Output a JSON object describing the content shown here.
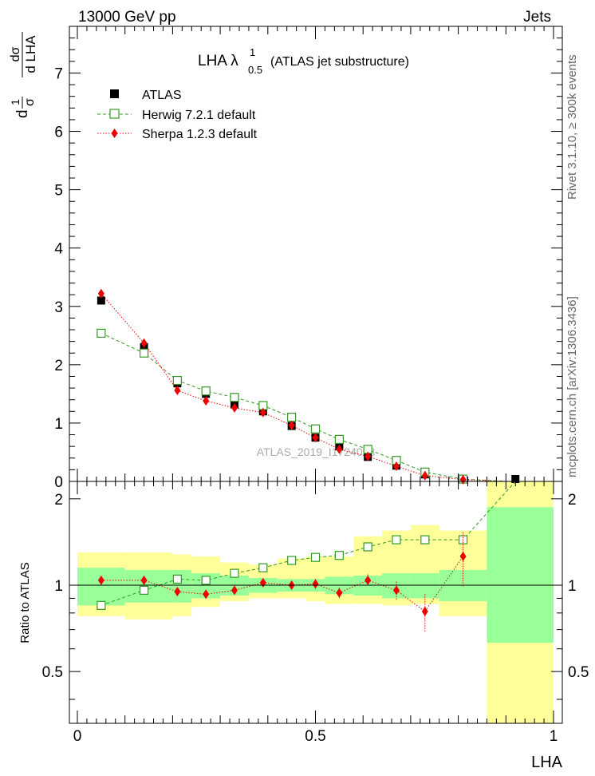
{
  "header": {
    "left": "13000 GeV pp",
    "right": "Jets"
  },
  "side_text": {
    "rivet": "Rivet 3.1.10, ≥ 300k events",
    "mcplots": "mcplots.cern.ch [arXiv:1306.3436]"
  },
  "watermark": "ATLAS_2019_I1724098",
  "colors": {
    "herwig": "#339922",
    "sherpa": "#ee0000",
    "band_inner": "#99ff99",
    "band_outer": "#ffff99"
  },
  "chart_data": {
    "type": "scatter",
    "title_main": "LHA λ",
    "title_sup": "1",
    "title_sub": "0.5",
    "title_rest": "(ATLAS jet substructure)",
    "top_ylabel": {
      "frac_num": "1",
      "frac_den": "σ",
      "d": "d",
      "num": "dσ",
      "den": "d LHA"
    },
    "ratio_ylabel": "Ratio to ATLAS",
    "xlabel": "LHA",
    "xlim": [
      0,
      1
    ],
    "top_ylim": [
      0,
      7.8
    ],
    "ratio_ylim": [
      0.33,
      2.3
    ],
    "top_yticks": [
      "0",
      "1",
      "2",
      "3",
      "4",
      "5",
      "6",
      "7"
    ],
    "ratio_yticks": [
      "0.5",
      "1",
      "2"
    ],
    "xticks": [
      "0",
      "0.5",
      "1"
    ],
    "bins": [
      [
        0.0,
        0.1
      ],
      [
        0.1,
        0.2
      ],
      [
        0.2,
        0.24
      ],
      [
        0.24,
        0.3
      ],
      [
        0.3,
        0.36
      ],
      [
        0.36,
        0.42
      ],
      [
        0.42,
        0.48
      ],
      [
        0.48,
        0.52
      ],
      [
        0.52,
        0.58
      ],
      [
        0.58,
        0.64
      ],
      [
        0.64,
        0.7
      ],
      [
        0.7,
        0.76
      ],
      [
        0.76,
        0.86
      ],
      [
        0.86,
        1.0
      ]
    ],
    "series": [
      {
        "name": "ATLAS",
        "x": [
          0.05,
          0.14,
          0.21,
          0.27,
          0.33,
          0.39,
          0.45,
          0.5,
          0.55,
          0.61,
          0.67,
          0.73,
          0.81,
          0.92
        ],
        "values": [
          3.1,
          2.3,
          1.68,
          1.5,
          1.32,
          1.2,
          0.95,
          0.75,
          0.6,
          0.42,
          0.27,
          0.12,
          0.03,
          0.0
        ]
      },
      {
        "name": "Herwig 7.2.1 default",
        "x": [
          0.05,
          0.14,
          0.21,
          0.27,
          0.33,
          0.39,
          0.45,
          0.5,
          0.55,
          0.61,
          0.67,
          0.73,
          0.81
        ],
        "values": [
          2.54,
          2.2,
          1.73,
          1.55,
          1.44,
          1.3,
          1.1,
          0.9,
          0.72,
          0.55,
          0.36,
          0.16,
          0.04
        ],
        "ratio": [
          0.85,
          0.96,
          1.05,
          1.04,
          1.1,
          1.15,
          1.22,
          1.25,
          1.27,
          1.36,
          1.44,
          1.44,
          1.44,
          2.3
        ]
      },
      {
        "name": "Sherpa 1.2.3 default",
        "x": [
          0.05,
          0.14,
          0.21,
          0.27,
          0.33,
          0.39,
          0.45,
          0.5,
          0.55,
          0.61,
          0.67,
          0.73,
          0.81
        ],
        "values": [
          3.22,
          2.37,
          1.56,
          1.38,
          1.26,
          1.18,
          0.96,
          0.75,
          0.55,
          0.43,
          0.26,
          0.1,
          0.03
        ],
        "ratio": [
          1.04,
          1.04,
          0.95,
          0.93,
          0.96,
          1.02,
          1.0,
          1.01,
          0.94,
          1.04,
          0.96,
          0.81,
          1.26
        ],
        "ratio_err": [
          0.02,
          0.02,
          0.02,
          0.02,
          0.03,
          0.03,
          0.03,
          0.04,
          0.04,
          0.05,
          0.07,
          0.12,
          0.27
        ]
      }
    ],
    "band_inner": [
      [
        0.85,
        1.15
      ],
      [
        0.87,
        1.13
      ],
      [
        0.87,
        1.13
      ],
      [
        0.9,
        1.1
      ],
      [
        0.92,
        1.08
      ],
      [
        0.94,
        1.06
      ],
      [
        0.95,
        1.05
      ],
      [
        0.95,
        1.05
      ],
      [
        0.93,
        1.07
      ],
      [
        0.92,
        1.08
      ],
      [
        0.9,
        1.1
      ],
      [
        0.9,
        1.1
      ],
      [
        0.88,
        1.13
      ],
      [
        0.63,
        1.87
      ]
    ],
    "band_outer": [
      [
        0.78,
        1.3
      ],
      [
        0.76,
        1.3
      ],
      [
        0.78,
        1.28
      ],
      [
        0.84,
        1.26
      ],
      [
        0.88,
        1.2
      ],
      [
        0.9,
        1.18
      ],
      [
        0.9,
        1.24
      ],
      [
        0.88,
        1.26
      ],
      [
        0.86,
        1.26
      ],
      [
        0.86,
        1.48
      ],
      [
        0.85,
        1.55
      ],
      [
        0.86,
        1.62
      ],
      [
        0.78,
        1.55
      ],
      [
        0.33,
        2.3
      ]
    ]
  }
}
